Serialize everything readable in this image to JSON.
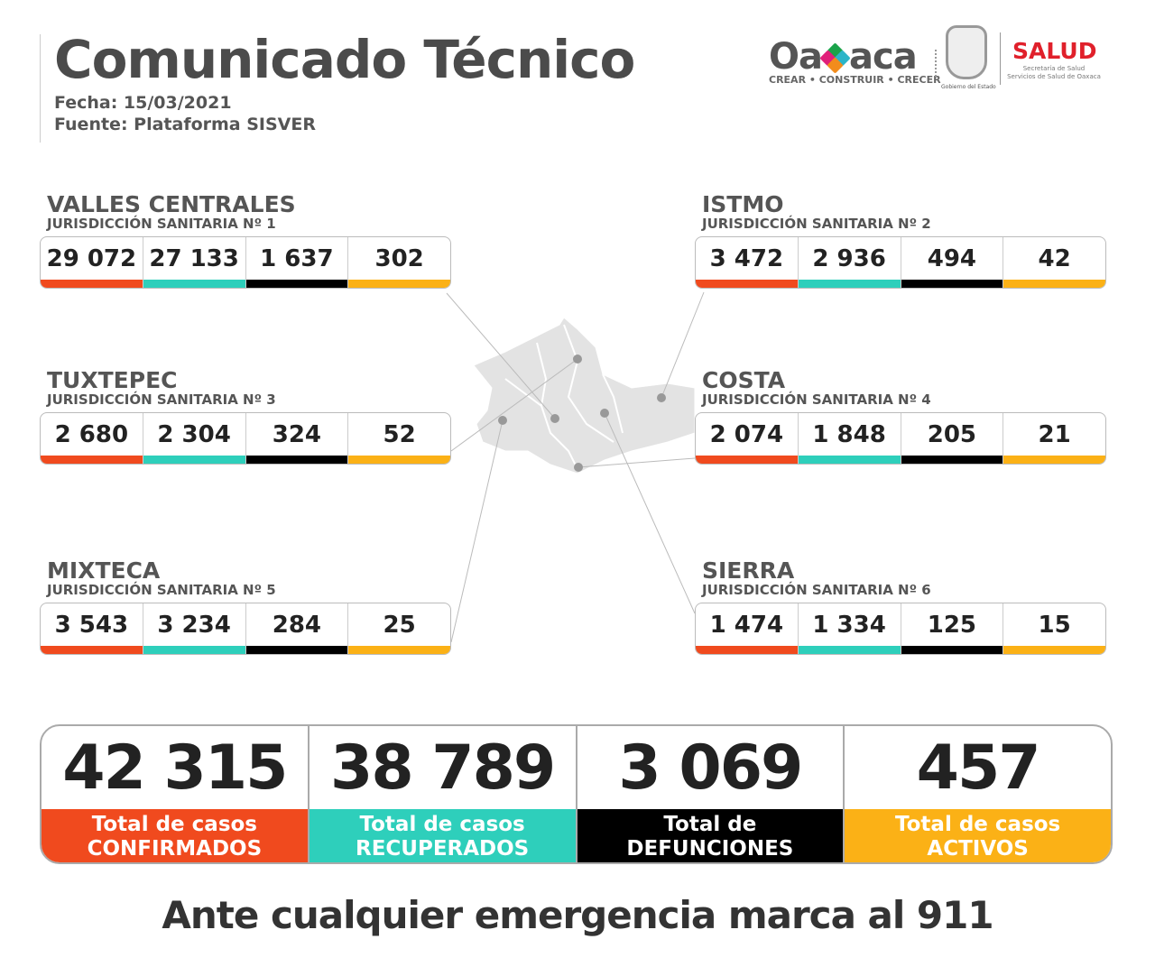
{
  "header": {
    "title": "Comunicado Técnico",
    "date": "Fecha: 15/03/2021",
    "source": "Fuente: Plataforma SISVER"
  },
  "logos": {
    "oaxaca_left": "Oa",
    "oaxaca_right": "aca",
    "oaxaca_tagline": "CREAR • CONSTRUIR • CRECER",
    "gobierno": "Gobierno del Estado",
    "salud": "SALUD",
    "salud_sub1": "Secretaría de Salud",
    "salud_sub2": "Servicios de Salud de Oaxaca"
  },
  "colors": {
    "confirmados": "#f04a1e",
    "recuperados": "#2ecfbb",
    "defunciones": "#000000",
    "activos": "#fbb116"
  },
  "regions": [
    {
      "name": "VALLES CENTRALES",
      "sub": "JURISDICCIÓN SANITARIA Nº 1",
      "values": [
        "29 072",
        "27 133",
        "1 637",
        "302"
      ]
    },
    {
      "name": "ISTMO",
      "sub": "JURISDICCIÓN SANITARIA Nº 2",
      "values": [
        "3 472",
        "2 936",
        "494",
        "42"
      ]
    },
    {
      "name": "TUXTEPEC",
      "sub": "JURISDICCIÓN SANITARIA Nº 3",
      "values": [
        "2 680",
        "2 304",
        "324",
        "52"
      ]
    },
    {
      "name": "COSTA",
      "sub": "JURISDICCIÓN SANITARIA Nº 4",
      "values": [
        "2 074",
        "1 848",
        "205",
        "21"
      ]
    },
    {
      "name": "MIXTECA",
      "sub": "JURISDICCIÓN SANITARIA Nº 5",
      "values": [
        "3 543",
        "3 234",
        "284",
        "25"
      ]
    },
    {
      "name": "SIERRA",
      "sub": "JURISDICCIÓN SANITARIA Nº 6",
      "values": [
        "1 474",
        "1 334",
        "125",
        "15"
      ]
    }
  ],
  "totals": [
    {
      "value": "42 315",
      "line1": "Total de casos",
      "line2": "CONFIRMADOS"
    },
    {
      "value": "38 789",
      "line1": "Total de casos",
      "line2": "RECUPERADOS"
    },
    {
      "value": "3 069",
      "line1": "Total de",
      "line2": "DEFUNCIONES"
    },
    {
      "value": "457",
      "line1": "Total de casos",
      "line2": "ACTIVOS"
    }
  ],
  "footer": "Ante cualquier emergencia marca al 911"
}
